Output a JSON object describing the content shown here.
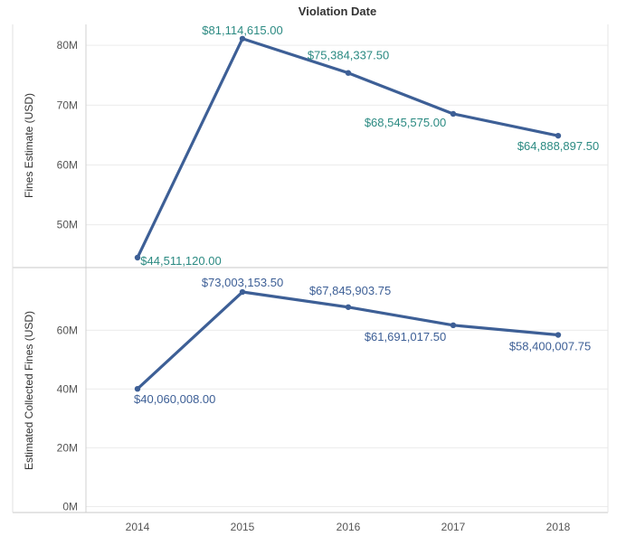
{
  "header": {
    "title": "Violation Date"
  },
  "chart_data": [
    {
      "type": "line",
      "ylabel": "Fines Estimate (USD)",
      "x": [
        "2014",
        "2015",
        "2016",
        "2017",
        "2018"
      ],
      "values": [
        44511120.0,
        81114615.0,
        75384337.5,
        68545575.0,
        64888897.5
      ],
      "data_labels": [
        "$44,511,120.00",
        "$81,114,615.00",
        "$75,384,337.50",
        "$68,545,575.00",
        "$64,888,897.50"
      ],
      "y_ticks": [
        50000000,
        60000000,
        70000000,
        80000000
      ],
      "y_tick_labels": [
        "50M",
        "60M",
        "70M",
        "80M"
      ],
      "ylim": [
        43000000,
        83500000
      ],
      "grid": true,
      "line_color": "#3d5f96",
      "label_color": "#2b8a82"
    },
    {
      "type": "line",
      "ylabel": "Estimated Collected Fines (USD)",
      "x": [
        "2014",
        "2015",
        "2016",
        "2017",
        "2018"
      ],
      "values": [
        40060008.0,
        73003153.5,
        67845903.75,
        61691017.5,
        58400007.75
      ],
      "data_labels": [
        "$40,060,008.00",
        "$73,003,153.50",
        "$67,845,903.75",
        "$61,691,017.50",
        "$58,400,007.75"
      ],
      "y_ticks": [
        0,
        20000000,
        40000000,
        60000000
      ],
      "y_tick_labels": [
        "0M",
        "20M",
        "40M",
        "60M"
      ],
      "ylim": [
        -2000000,
        81000000
      ],
      "grid": true,
      "line_color": "#3d5f96",
      "label_color": "#3d5f96"
    }
  ],
  "x_tick_labels": [
    "2014",
    "2015",
    "2016",
    "2017",
    "2018"
  ]
}
